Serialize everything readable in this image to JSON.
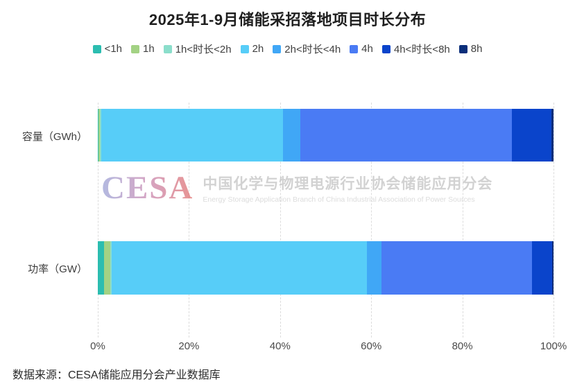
{
  "title": "2025年1-9月储能采招落地项目时长分布",
  "source": "数据来源：CESA储能应用分会产业数据库",
  "watermark": {
    "logo": "CESA",
    "logo_colors": [
      "#96a0d6",
      "#c583ae",
      "#e06a68"
    ],
    "cn": "中国化学与物理电源行业协会储能应用分会",
    "en": "Energy Storage Application Branch of China Industrial Association of Power Sources"
  },
  "chart_data": {
    "type": "bar",
    "orientation": "horizontal",
    "stacked": true,
    "unit": "percent",
    "title": "2025年1-9月储能采招落地项目时长分布",
    "categories": [
      "容量（GWh）",
      "功率（GW）"
    ],
    "series": [
      {
        "name": "<1h",
        "color": "#2cbdb0",
        "values": [
          0.2,
          1.3
        ]
      },
      {
        "name": "1h",
        "color": "#a3d284",
        "values": [
          0.3,
          1.5
        ]
      },
      {
        "name": "1h<时长<2h",
        "color": "#8bdecb",
        "values": [
          0.3,
          0.3
        ]
      },
      {
        "name": "2h",
        "color": "#57cdf8",
        "values": [
          39.8,
          56.0
        ]
      },
      {
        "name": "2h<时长<4h",
        "color": "#40a7f6",
        "values": [
          3.8,
          3.1
        ]
      },
      {
        "name": "4h",
        "color": "#4a7bf4",
        "values": [
          46.4,
          33.1
        ]
      },
      {
        "name": "4h<时长<8h",
        "color": "#0a44cb",
        "values": [
          8.7,
          4.4
        ]
      },
      {
        "name": "8h",
        "color": "#0a2e7a",
        "values": [
          0.5,
          0.3
        ]
      }
    ],
    "x_axis": {
      "ticks": [
        "0%",
        "20%",
        "40%",
        "60%",
        "80%",
        "100%"
      ],
      "range": [
        0,
        100
      ],
      "grid": "dashed",
      "legend_position": "top"
    }
  }
}
